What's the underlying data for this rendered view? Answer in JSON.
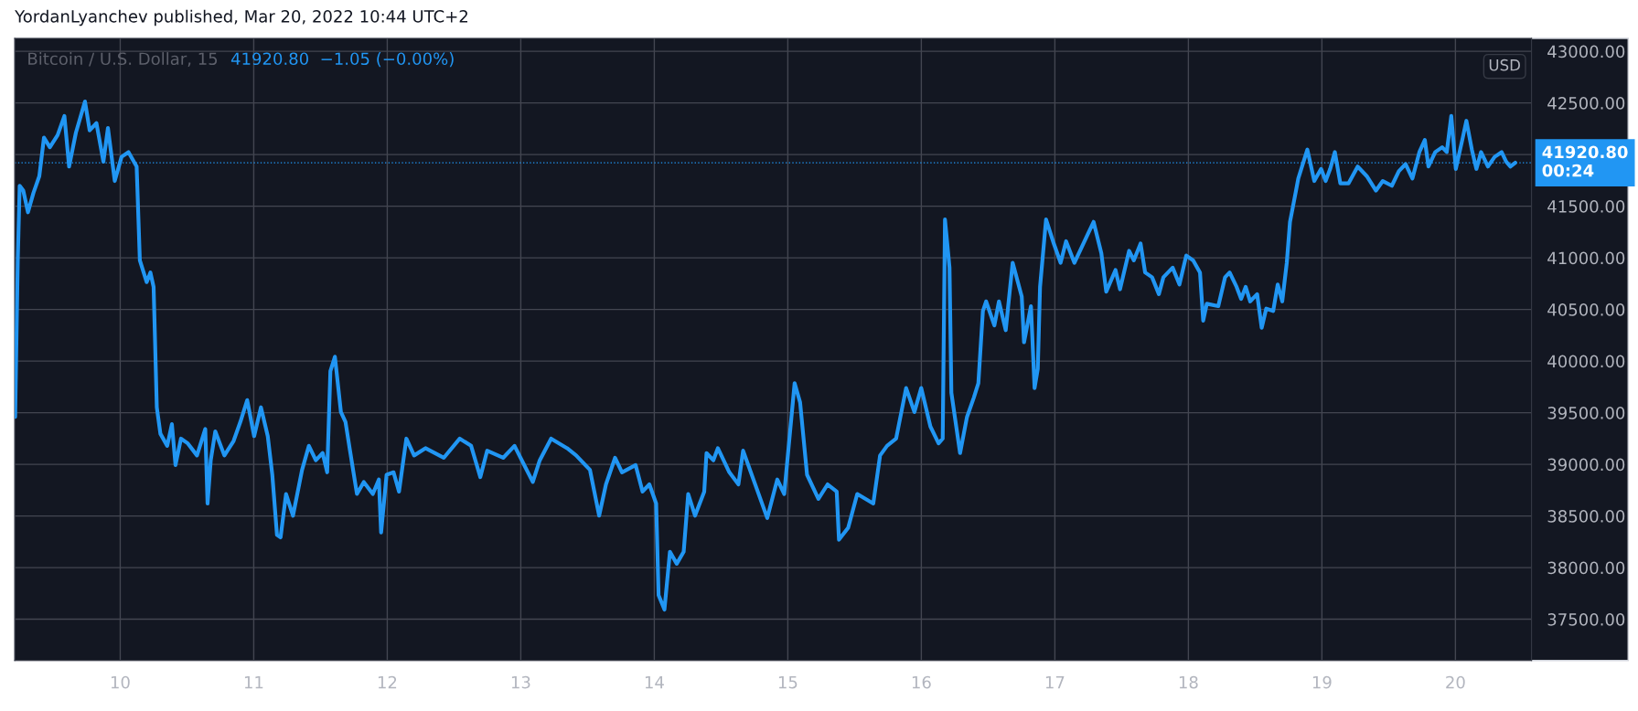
{
  "chart_data": {
    "type": "line",
    "title": "YordanLyanchev published, Mar 20, 2022 10:44 UTC+2",
    "subtitle": "Bitcoin / U.S. Dollar, 15",
    "annotations": [
      "41920.80  −1.05 (−0.00%)",
      "USD"
    ],
    "series": [
      {
        "color": "#2196f3",
        "x": [
          9.213,
          9.233,
          9.247,
          9.274,
          9.309,
          9.35,
          9.394,
          9.429,
          9.473,
          9.531,
          9.582,
          9.617,
          9.668,
          9.736,
          9.771,
          9.822,
          9.874,
          9.908,
          9.959,
          10.01,
          10.062,
          10.123,
          10.147,
          10.198,
          10.226,
          10.25,
          10.274,
          10.301,
          10.352,
          10.387,
          10.414,
          10.455,
          10.506,
          10.575,
          10.637,
          10.654,
          10.678,
          10.712,
          10.78,
          10.849,
          10.9,
          10.951,
          11.003,
          11.054,
          11.105,
          11.139,
          11.174,
          11.201,
          11.242,
          11.294,
          11.362,
          11.413,
          11.465,
          11.516,
          11.55,
          11.574,
          11.608,
          11.653,
          11.687,
          11.721,
          11.773,
          11.824,
          11.892,
          11.937,
          11.954,
          11.995,
          12.047,
          12.088,
          12.143,
          12.201,
          12.286,
          12.423,
          12.543,
          12.628,
          12.697,
          12.748,
          12.868,
          12.953,
          13.09,
          13.142,
          13.227,
          13.347,
          13.415,
          13.518,
          13.587,
          13.638,
          13.706,
          13.758,
          13.86,
          13.912,
          13.963,
          14.014,
          14.032,
          14.076,
          14.117,
          14.168,
          14.22,
          14.254,
          14.305,
          14.374,
          14.391,
          14.442,
          14.476,
          14.562,
          14.63,
          14.665,
          14.846,
          14.921,
          14.973,
          15.051,
          15.092,
          15.144,
          15.229,
          15.298,
          15.366,
          15.383,
          15.452,
          15.52,
          15.64,
          15.691,
          15.743,
          15.811,
          15.886,
          15.948,
          15.999,
          16.068,
          16.129,
          16.16,
          16.177,
          16.211,
          16.225,
          16.29,
          16.342,
          16.393,
          16.427,
          16.461,
          16.485,
          16.547,
          16.581,
          16.632,
          16.684,
          16.752,
          16.769,
          16.821,
          16.848,
          16.872,
          16.889,
          16.934,
          16.992,
          17.043,
          17.084,
          17.146,
          17.29,
          17.348,
          17.385,
          17.454,
          17.488,
          17.556,
          17.591,
          17.642,
          17.676,
          17.728,
          17.779,
          17.813,
          17.882,
          17.933,
          17.984,
          18.036,
          18.087,
          18.111,
          18.138,
          18.224,
          18.275,
          18.309,
          18.361,
          18.395,
          18.429,
          18.463,
          18.515,
          18.549,
          18.583,
          18.635,
          18.669,
          18.703,
          18.737,
          18.761,
          18.806,
          18.823,
          18.891,
          18.943,
          18.994,
          19.028,
          19.062,
          19.097,
          19.138,
          19.199,
          19.268,
          19.336,
          19.405,
          19.456,
          19.524,
          19.576,
          19.627,
          19.678,
          19.73,
          19.771,
          19.798,
          19.849,
          19.901,
          19.935,
          19.969,
          20.003,
          20.055,
          20.082,
          20.123,
          20.157,
          20.192,
          20.243,
          20.294,
          20.346,
          20.38,
          20.411,
          20.448
        ],
        "values": [
          39459,
          40998,
          41698,
          41651,
          41441,
          41628,
          41791,
          42164,
          42071,
          42188,
          42374,
          41884,
          42211,
          42514,
          42234,
          42304,
          41931,
          42257,
          41744,
          41978,
          42024,
          41884,
          40975,
          40765,
          40858,
          40718,
          39552,
          39296,
          39179,
          39389,
          38993,
          39249,
          39203,
          39086,
          39342,
          38620,
          39039,
          39319,
          39086,
          39226,
          39412,
          39622,
          39273,
          39552,
          39273,
          38899,
          38316,
          38293,
          38713,
          38503,
          38946,
          39179,
          39039,
          39109,
          38923,
          39902,
          40042,
          39506,
          39412,
          39132,
          38713,
          38829,
          38713,
          38853,
          38340,
          38899,
          38923,
          38736,
          39249,
          39086,
          39156,
          39063,
          39249,
          39179,
          38876,
          39132,
          39063,
          39179,
          38829,
          39039,
          39249,
          39156,
          39086,
          38946,
          38503,
          38806,
          39063,
          38923,
          38993,
          38736,
          38806,
          38620,
          37733,
          37593,
          38153,
          38037,
          38153,
          38713,
          38503,
          38736,
          39109,
          39039,
          39156,
          38923,
          38806,
          39132,
          38480,
          38853,
          38713,
          39786,
          39599,
          38899,
          38666,
          38806,
          38736,
          38270,
          38386,
          38713,
          38620,
          39086,
          39179,
          39249,
          39739,
          39506,
          39739,
          39366,
          39203,
          39249,
          41371,
          40905,
          39692,
          39109,
          39459,
          39646,
          39786,
          40485,
          40578,
          40345,
          40578,
          40299,
          40952,
          40625,
          40182,
          40532,
          39739,
          39925,
          40718,
          41371,
          41138,
          40952,
          41161,
          40952,
          41348,
          41045,
          40672,
          40882,
          40695,
          41068,
          40975,
          41138,
          40858,
          40812,
          40648,
          40812,
          40905,
          40742,
          41022,
          40975,
          40858,
          40392,
          40555,
          40532,
          40812,
          40858,
          40718,
          40602,
          40718,
          40578,
          40648,
          40322,
          40508,
          40485,
          40742,
          40578,
          40952,
          41348,
          41651,
          41768,
          42048,
          41744,
          41861,
          41744,
          41861,
          42024,
          41721,
          41721,
          41884,
          41791,
          41651,
          41744,
          41698,
          41838,
          41908,
          41768,
          42024,
          42141,
          41884,
          42024,
          42071,
          42024,
          42374,
          41861,
          42164,
          42327,
          42048,
          41861,
          42024,
          41884,
          41978,
          42024,
          41931,
          41884,
          41920.8
        ]
      }
    ],
    "xlim": [
      9.21,
      20.57
    ],
    "ylim": [
      37100,
      43125
    ],
    "xticks": [
      10,
      11,
      12,
      13,
      14,
      15,
      16,
      17,
      18,
      19,
      20
    ],
    "yticks": [
      {
        "value": 37500,
        "label": "37500.00"
      },
      {
        "value": 38000,
        "label": "38000.00"
      },
      {
        "value": 38500,
        "label": "38500.00"
      },
      {
        "value": 39000,
        "label": "39000.00"
      },
      {
        "value": 39500,
        "label": "39500.00"
      },
      {
        "value": 40000,
        "label": "40000.00"
      },
      {
        "value": 40500,
        "label": "40500.00"
      },
      {
        "value": 41000,
        "label": "41000.00"
      },
      {
        "value": 41500,
        "label": "41500.00"
      },
      {
        "value": 42000,
        "label": null
      },
      {
        "value": 42500,
        "label": "42500.00"
      },
      {
        "value": 43000,
        "label": "43000.00"
      }
    ],
    "grid": true,
    "line_style": "solid",
    "ref_lines": [
      {
        "axis": "y",
        "value": 41920.8,
        "label": "41920.80\n00:24",
        "color": "#2196f3",
        "line_style": "dotted"
      }
    ]
  }
}
